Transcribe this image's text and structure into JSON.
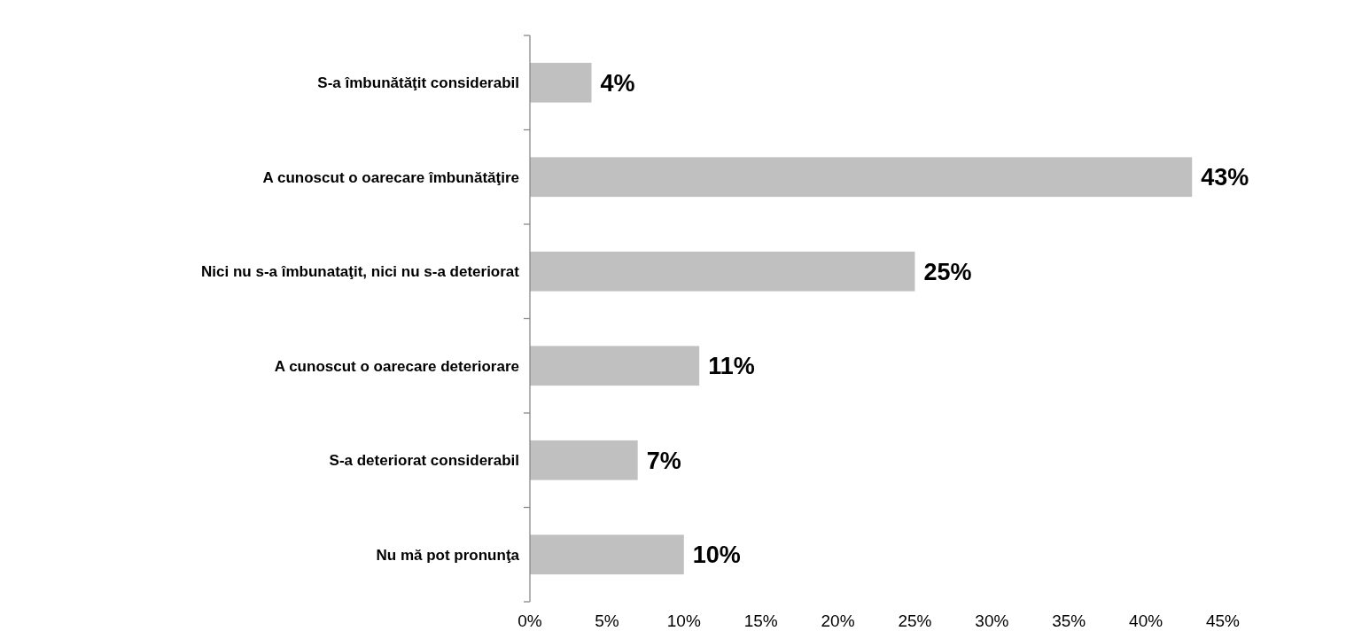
{
  "chart_data": {
    "type": "bar",
    "orientation": "horizontal",
    "categories": [
      "S-a îmbunătăţit considerabil",
      "A cunoscut o oarecare îmbunătăţire",
      "Nici nu s-a îmbunataţit, nici nu s-a deteriorat",
      "A cunoscut o oarecare deteriorare",
      "S-a deteriorat considerabil",
      "Nu mă pot pronunţa"
    ],
    "values": [
      4,
      43,
      25,
      11,
      7,
      10
    ],
    "value_labels": [
      "4%",
      "43%",
      "25%",
      "11%",
      "7%",
      "10%"
    ],
    "color": "#c0c0c0",
    "xlim": [
      0,
      45
    ],
    "xticks": [
      {
        "value": 0,
        "label": "0%"
      },
      {
        "value": 5,
        "label": "5%"
      },
      {
        "value": 10,
        "label": "10%"
      },
      {
        "value": 15,
        "label": "15%"
      },
      {
        "value": 20,
        "label": "20%"
      },
      {
        "value": 25,
        "label": "25%"
      },
      {
        "value": 30,
        "label": "30%"
      },
      {
        "value": 35,
        "label": "35%"
      },
      {
        "value": 40,
        "label": "40%"
      },
      {
        "value": 45,
        "label": "45%"
      }
    ],
    "grid": false
  }
}
